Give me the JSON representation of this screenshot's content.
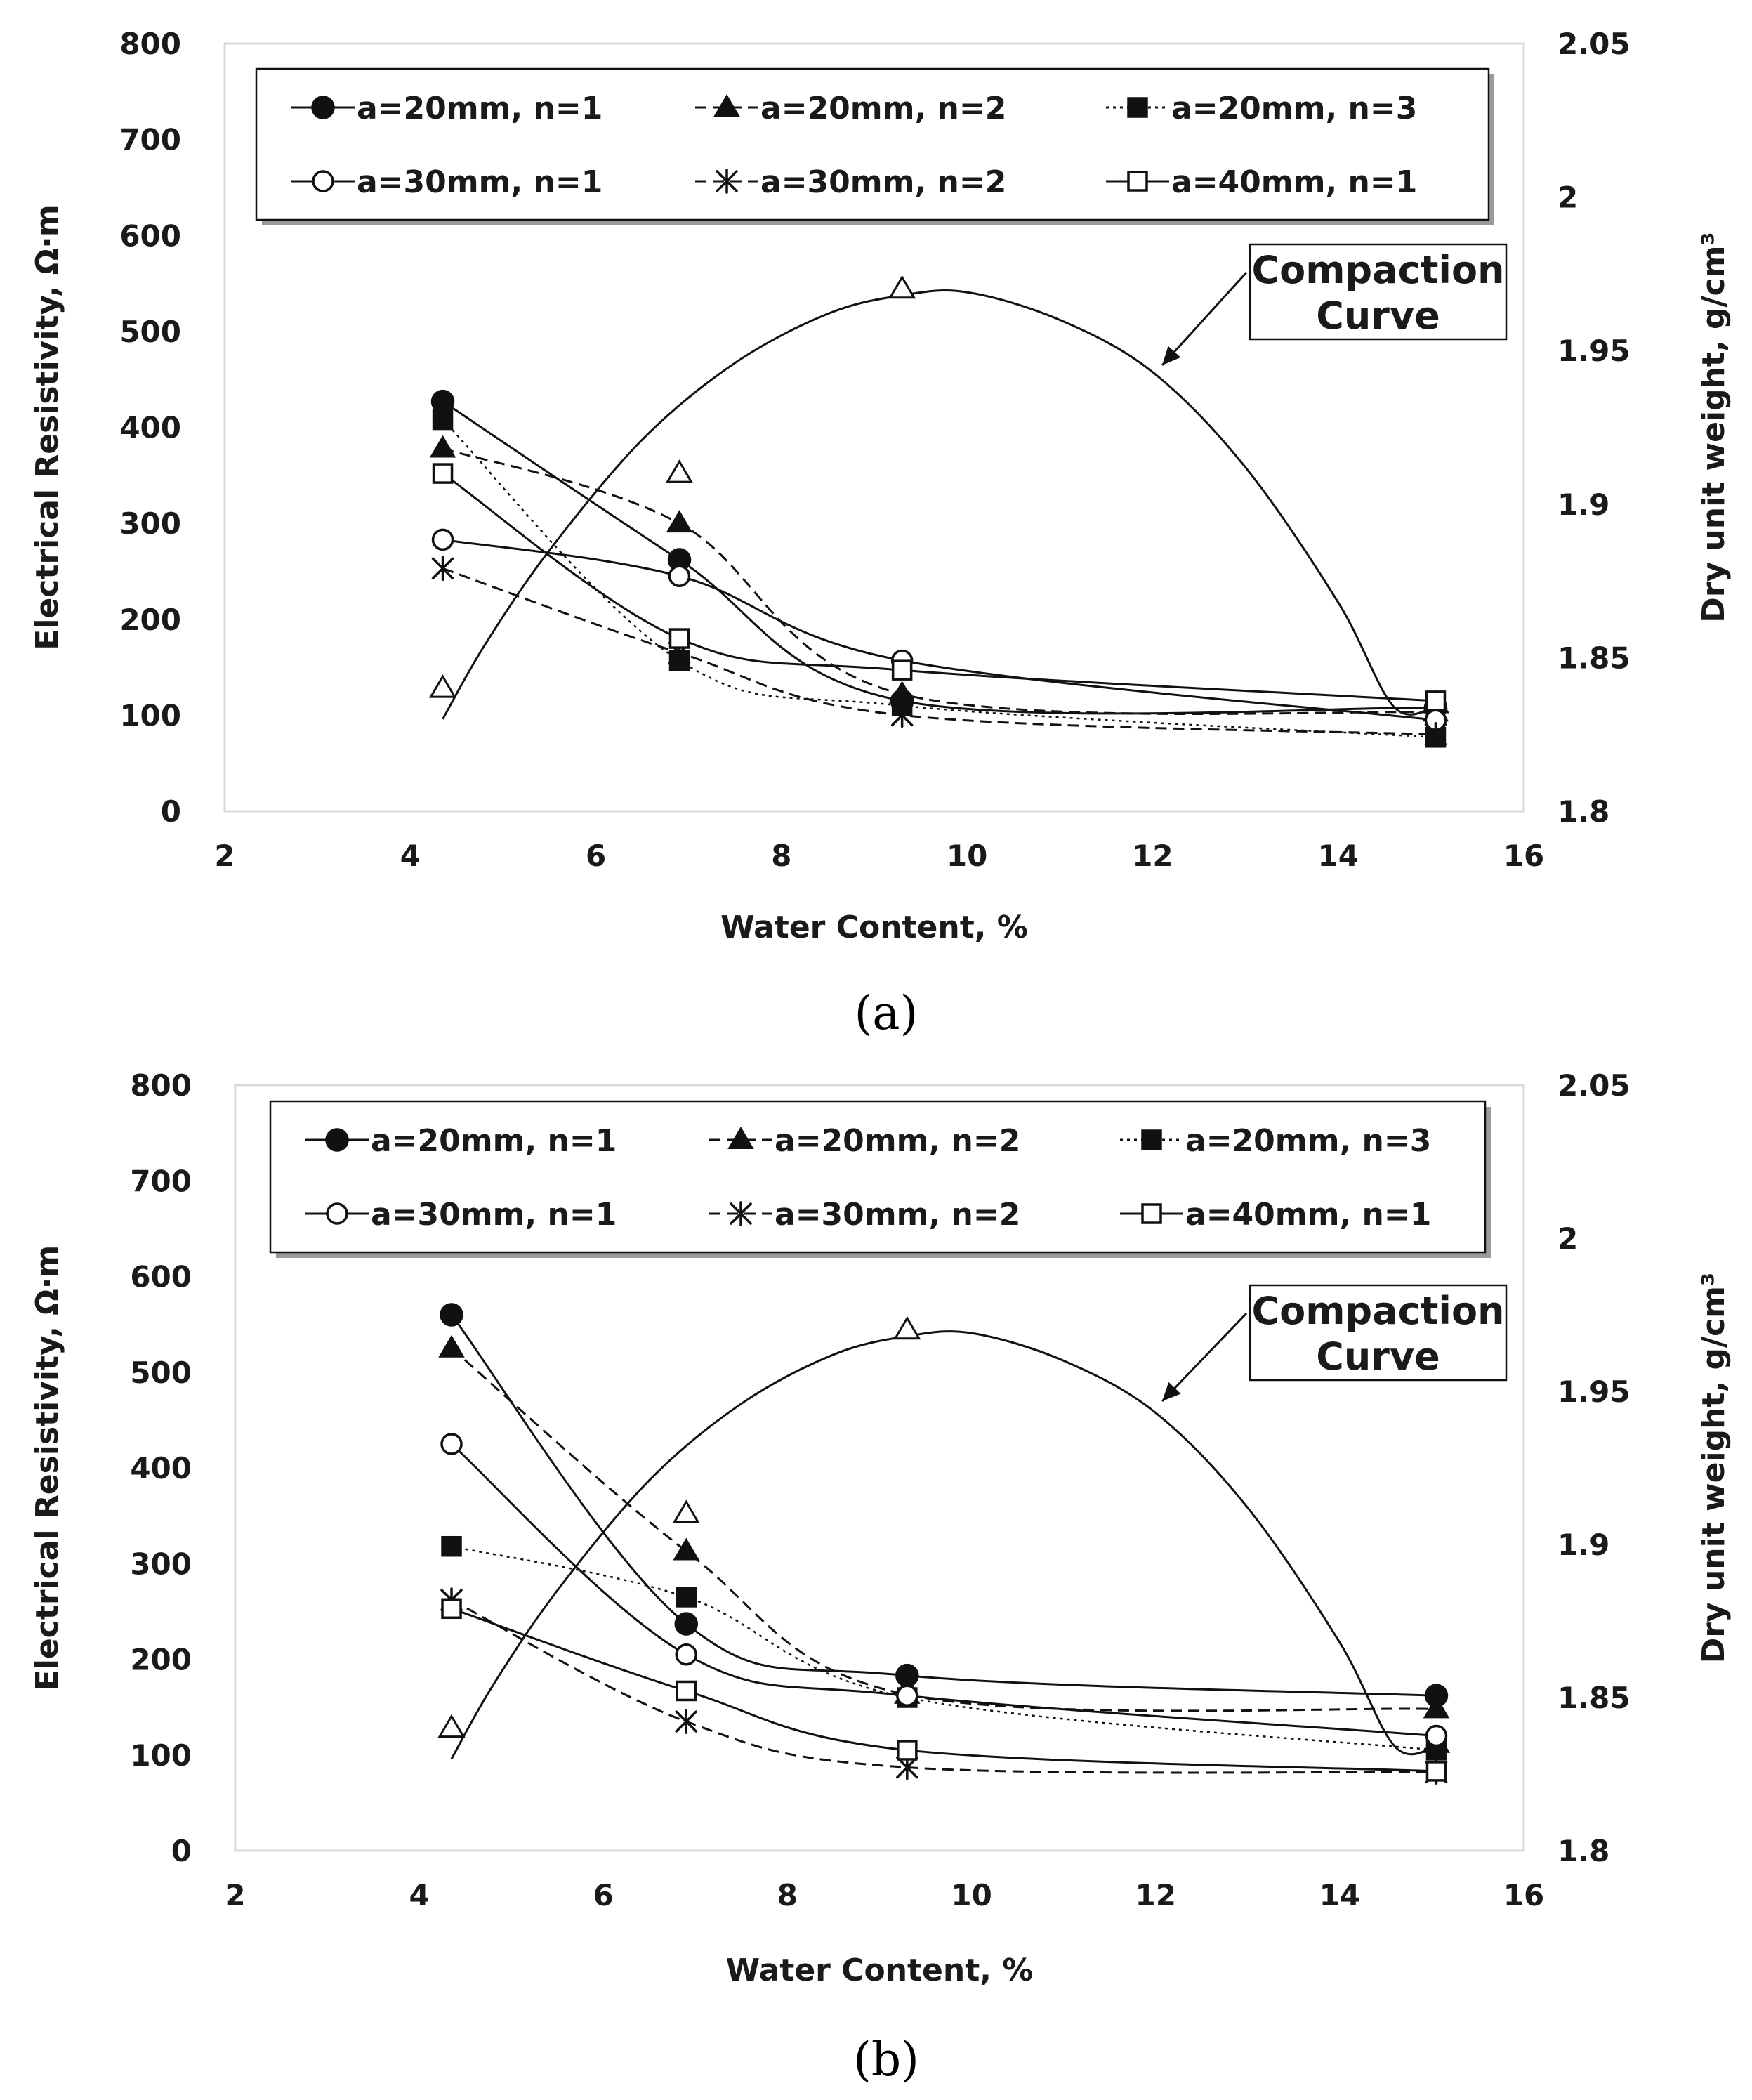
{
  "chart_data": [
    {
      "type": "line",
      "panel_label": "(a)",
      "xlabel": "Water Content, %",
      "ylabel": "Electrical Resistivity, Ω·m",
      "y2label": "Dry unit weight, g/cm³",
      "xlim": [
        2,
        16
      ],
      "ylim": [
        0,
        800
      ],
      "y2lim": [
        1.8,
        2.05
      ],
      "xticks": [
        "2",
        "4",
        "6",
        "8",
        "10",
        "12",
        "14",
        "16"
      ],
      "yticks": [
        "0",
        "100",
        "200",
        "300",
        "400",
        "500",
        "600",
        "700",
        "800"
      ],
      "y2ticks": [
        "1.8",
        "1.85",
        "1.9",
        "1.95",
        "2",
        "2.05"
      ],
      "grid": false,
      "legend_position": "top",
      "annotation": {
        "line1": "Compaction",
        "line2": "Curve"
      },
      "x": [
        4.35,
        6.9,
        9.3,
        15.05
      ],
      "series": [
        {
          "name": "a=20mm, n=1",
          "marker": "filled-circle",
          "dash": "solid",
          "values": [
            427,
            262,
            115,
            108
          ]
        },
        {
          "name": "a=20mm, n=2",
          "marker": "filled-triangle",
          "dash": "dashed",
          "values": [
            378,
            300,
            122,
            103
          ]
        },
        {
          "name": "a=20mm, n=3",
          "marker": "filled-square",
          "dash": "dotted",
          "values": [
            408,
            157,
            110,
            77
          ]
        },
        {
          "name": "a=30mm, n=1",
          "marker": "open-circle",
          "dash": "solid",
          "values": [
            283,
            245,
            157,
            95
          ]
        },
        {
          "name": "a=30mm, n=2",
          "marker": "asterisk",
          "dash": "dashed",
          "values": [
            253,
            165,
            100,
            80
          ]
        },
        {
          "name": "a=40mm, n=1",
          "marker": "open-square",
          "dash": "solid",
          "values": [
            352,
            180,
            147,
            115
          ]
        }
      ],
      "compaction": {
        "name": "Compaction Curve",
        "points": [
          [
            4.35,
            1.84
          ],
          [
            6.9,
            1.91
          ],
          [
            9.3,
            1.97
          ],
          [
            15.05,
            1.835
          ]
        ],
        "fit": [
          [
            4.35,
            1.83
          ],
          [
            4.8,
            1.854
          ],
          [
            5.5,
            1.885
          ],
          [
            6.5,
            1.921
          ],
          [
            7.5,
            1.946
          ],
          [
            8.5,
            1.962
          ],
          [
            9.3,
            1.968
          ],
          [
            10.0,
            1.969
          ],
          [
            11.0,
            1.96
          ],
          [
            12.0,
            1.943
          ],
          [
            13.0,
            1.912
          ],
          [
            14.0,
            1.868
          ],
          [
            14.6,
            1.834
          ],
          [
            15.05,
            1.834
          ]
        ]
      }
    },
    {
      "type": "line",
      "panel_label": "(b)",
      "xlabel": "Water Content, %",
      "ylabel": "Electrical Resistivity, Ω·m",
      "y2label": "Dry unit weight, g/cm³",
      "xlim": [
        2,
        16
      ],
      "ylim": [
        0,
        800
      ],
      "y2lim": [
        1.8,
        2.05
      ],
      "xticks": [
        "2",
        "4",
        "6",
        "8",
        "10",
        "12",
        "14",
        "16"
      ],
      "yticks": [
        "0",
        "100",
        "200",
        "300",
        "400",
        "500",
        "600",
        "700",
        "800"
      ],
      "y2ticks": [
        "1.8",
        "1.85",
        "1.9",
        "1.95",
        "2",
        "2.05"
      ],
      "grid": false,
      "legend_position": "top",
      "annotation": {
        "line1": "Compaction",
        "line2": "Curve"
      },
      "x": [
        4.35,
        6.9,
        9.3,
        15.05
      ],
      "series": [
        {
          "name": "a=20mm, n=1",
          "marker": "filled-circle",
          "dash": "solid",
          "values": [
            560,
            237,
            183,
            162
          ]
        },
        {
          "name": "a=20mm, n=2",
          "marker": "filled-triangle",
          "dash": "dashed",
          "values": [
            525,
            313,
            163,
            148
          ]
        },
        {
          "name": "a=20mm, n=3",
          "marker": "filled-square",
          "dash": "dotted",
          "values": [
            318,
            265,
            160,
            105
          ]
        },
        {
          "name": "a=30mm, n=1",
          "marker": "open-circle",
          "dash": "solid",
          "values": [
            425,
            205,
            162,
            120
          ]
        },
        {
          "name": "a=30mm, n=2",
          "marker": "asterisk",
          "dash": "dashed",
          "values": [
            262,
            135,
            87,
            82
          ]
        },
        {
          "name": "a=40mm, n=1",
          "marker": "open-square",
          "dash": "solid",
          "values": [
            253,
            167,
            105,
            83
          ]
        }
      ],
      "compaction": {
        "name": "Compaction Curve",
        "points": [
          [
            4.35,
            1.84
          ],
          [
            6.9,
            1.91
          ],
          [
            9.3,
            1.97
          ],
          [
            15.05,
            1.835
          ]
        ],
        "fit": [
          [
            4.35,
            1.83
          ],
          [
            4.8,
            1.854
          ],
          [
            5.5,
            1.885
          ],
          [
            6.5,
            1.921
          ],
          [
            7.5,
            1.946
          ],
          [
            8.5,
            1.962
          ],
          [
            9.3,
            1.968
          ],
          [
            10.0,
            1.969
          ],
          [
            11.0,
            1.96
          ],
          [
            12.0,
            1.943
          ],
          [
            13.0,
            1.912
          ],
          [
            14.0,
            1.868
          ],
          [
            14.6,
            1.834
          ],
          [
            15.05,
            1.834
          ]
        ]
      }
    }
  ]
}
